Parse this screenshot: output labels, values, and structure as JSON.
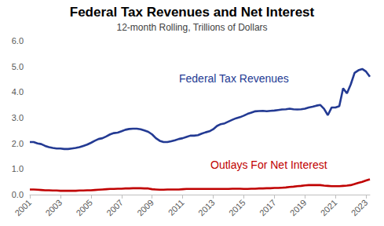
{
  "chart_data": {
    "type": "line",
    "title": "Federal Tax Revenues and Net Interest",
    "subtitle": "12-month Rolling, Trillions of Dollars",
    "x": [
      2001,
      2001.25,
      2001.5,
      2001.75,
      2002,
      2002.25,
      2002.5,
      2002.75,
      2003,
      2003.25,
      2003.5,
      2003.75,
      2004,
      2004.25,
      2004.5,
      2004.75,
      2005,
      2005.25,
      2005.5,
      2005.75,
      2006,
      2006.25,
      2006.5,
      2006.75,
      2007,
      2007.25,
      2007.5,
      2007.75,
      2008,
      2008.25,
      2008.5,
      2008.75,
      2009,
      2009.25,
      2009.5,
      2009.75,
      2010,
      2010.25,
      2010.5,
      2010.75,
      2011,
      2011.25,
      2011.5,
      2011.75,
      2012,
      2012.25,
      2012.5,
      2012.75,
      2013,
      2013.25,
      2013.5,
      2013.75,
      2014,
      2014.25,
      2014.5,
      2014.75,
      2015,
      2015.25,
      2015.5,
      2015.75,
      2016,
      2016.25,
      2016.5,
      2016.75,
      2017,
      2017.25,
      2017.5,
      2017.75,
      2018,
      2018.25,
      2018.5,
      2018.75,
      2019,
      2019.25,
      2019.5,
      2019.75,
      2020,
      2020.25,
      2020.5,
      2020.75,
      2021,
      2021.25,
      2021.5,
      2021.75,
      2022,
      2022.25,
      2022.5,
      2022.75,
      2023,
      2023.25
    ],
    "series": [
      {
        "name": "Federal Tax Revenues",
        "color": "#233a93",
        "values": [
          2.05,
          2.05,
          2.0,
          1.97,
          1.9,
          1.85,
          1.82,
          1.8,
          1.8,
          1.78,
          1.78,
          1.8,
          1.82,
          1.85,
          1.9,
          1.95,
          2.02,
          2.1,
          2.17,
          2.2,
          2.27,
          2.35,
          2.4,
          2.42,
          2.47,
          2.53,
          2.56,
          2.57,
          2.57,
          2.55,
          2.5,
          2.45,
          2.35,
          2.2,
          2.1,
          2.05,
          2.05,
          2.08,
          2.12,
          2.17,
          2.2,
          2.25,
          2.3,
          2.3,
          2.32,
          2.38,
          2.43,
          2.47,
          2.55,
          2.68,
          2.75,
          2.78,
          2.85,
          2.92,
          2.98,
          3.02,
          3.08,
          3.15,
          3.2,
          3.25,
          3.26,
          3.27,
          3.25,
          3.27,
          3.28,
          3.3,
          3.32,
          3.33,
          3.35,
          3.33,
          3.32,
          3.33,
          3.35,
          3.4,
          3.43,
          3.47,
          3.5,
          3.35,
          3.1,
          3.4,
          3.4,
          3.45,
          4.15,
          3.95,
          4.3,
          4.75,
          4.85,
          4.9,
          4.8,
          4.6
        ]
      },
      {
        "name": "Outlays For Net Interest",
        "color": "#c00000",
        "values": [
          0.2,
          0.2,
          0.19,
          0.18,
          0.17,
          0.17,
          0.16,
          0.16,
          0.15,
          0.15,
          0.15,
          0.15,
          0.15,
          0.16,
          0.16,
          0.17,
          0.17,
          0.18,
          0.19,
          0.2,
          0.21,
          0.22,
          0.22,
          0.23,
          0.23,
          0.24,
          0.24,
          0.25,
          0.25,
          0.25,
          0.24,
          0.24,
          0.21,
          0.2,
          0.19,
          0.19,
          0.2,
          0.2,
          0.2,
          0.2,
          0.21,
          0.22,
          0.22,
          0.22,
          0.22,
          0.22,
          0.22,
          0.22,
          0.22,
          0.22,
          0.22,
          0.22,
          0.22,
          0.23,
          0.23,
          0.23,
          0.22,
          0.22,
          0.23,
          0.23,
          0.24,
          0.24,
          0.25,
          0.25,
          0.26,
          0.26,
          0.27,
          0.28,
          0.3,
          0.31,
          0.33,
          0.34,
          0.36,
          0.37,
          0.37,
          0.37,
          0.37,
          0.35,
          0.34,
          0.33,
          0.33,
          0.33,
          0.34,
          0.35,
          0.37,
          0.41,
          0.46,
          0.5,
          0.55,
          0.6
        ]
      }
    ],
    "xlim": [
      2001,
      2023.25
    ],
    "xticks": [
      2001,
      2003,
      2005,
      2007,
      2009,
      2011,
      2013,
      2015,
      2017,
      2019,
      2021,
      2023
    ],
    "ylim": [
      0,
      6
    ],
    "yticks": [
      {
        "value": 0,
        "label": "0.0"
      },
      {
        "value": 1,
        "label": "1.0"
      },
      {
        "value": 2,
        "label": "2.0"
      },
      {
        "value": 3,
        "label": "3.0"
      },
      {
        "value": 4,
        "label": "4.0"
      },
      {
        "value": 5,
        "label": "5.0"
      },
      {
        "value": 6,
        "label": "6.0"
      }
    ],
    "grid": false
  }
}
